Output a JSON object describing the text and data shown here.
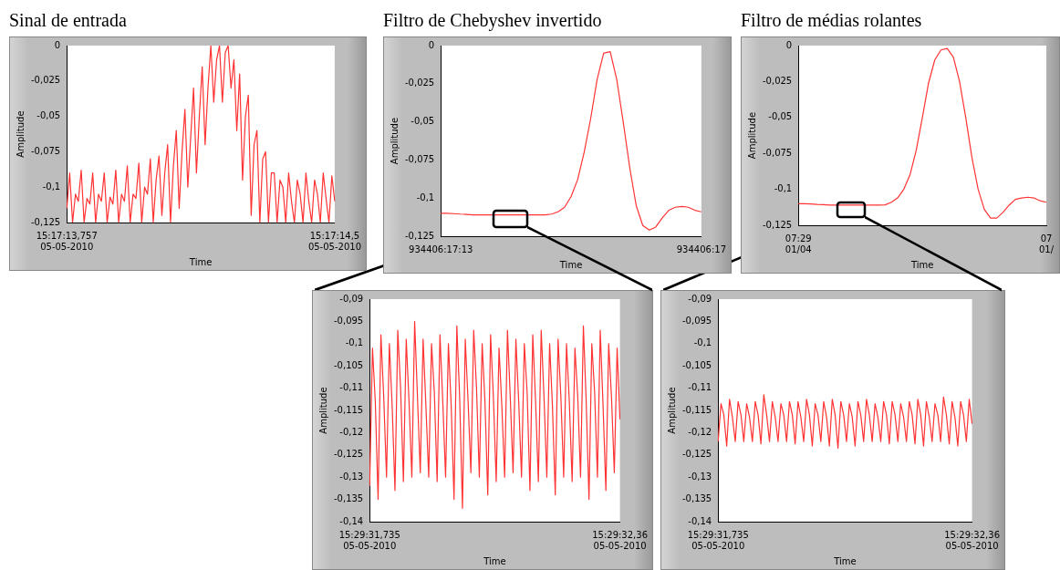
{
  "chart_data": [
    {
      "type": "line",
      "title": "Sinal de entrada",
      "xlabel": "Time",
      "ylabel": "Amplitude",
      "marker": "none",
      "categories": [
        "15:17:13,757\n05-05-2010",
        null,
        null,
        null,
        null,
        null,
        null,
        null,
        null,
        null,
        null,
        null,
        null,
        null,
        null,
        null,
        null,
        null,
        null,
        null,
        null,
        null,
        null,
        null,
        null,
        null,
        null,
        null,
        null,
        null,
        null,
        null,
        null,
        null,
        null,
        null,
        null,
        null,
        null,
        null,
        null,
        null,
        null,
        null,
        null,
        null,
        null,
        null,
        null,
        null,
        null,
        null,
        null,
        null,
        null,
        null,
        null,
        null,
        null,
        null,
        null,
        null,
        null,
        null,
        null,
        null,
        null,
        null,
        null,
        null,
        null,
        null,
        null,
        null,
        null,
        null,
        null,
        null,
        null,
        null,
        null,
        null,
        null,
        null,
        null,
        null,
        null,
        null,
        null,
        null,
        null,
        null,
        null,
        "15:17:14,5\n05-05-2010"
      ],
      "series": [
        {
          "color": "#ff3333",
          "values": [
            -0.115,
            -0.09,
            -0.125,
            -0.105,
            -0.11,
            -0.088,
            -0.125,
            -0.108,
            -0.112,
            -0.09,
            -0.125,
            -0.105,
            -0.11,
            -0.09,
            -0.125,
            -0.107,
            -0.112,
            -0.088,
            -0.125,
            -0.105,
            -0.11,
            -0.085,
            -0.125,
            -0.105,
            -0.108,
            -0.083,
            -0.125,
            -0.1,
            -0.105,
            -0.08,
            -0.125,
            -0.095,
            -0.078,
            -0.12,
            -0.09,
            -0.07,
            -0.125,
            -0.085,
            -0.06,
            -0.115,
            -0.075,
            -0.045,
            -0.1,
            -0.065,
            -0.03,
            -0.09,
            -0.05,
            -0.015,
            -0.07,
            -0.03,
            0,
            -0.04,
            -0.01,
            0,
            -0.04,
            -0.005,
            0,
            -0.03,
            -0.01,
            -0.06,
            -0.02,
            -0.095,
            -0.05,
            -0.035,
            -0.12,
            -0.07,
            -0.06,
            -0.125,
            -0.08,
            -0.075,
            -0.125,
            -0.09,
            -0.09,
            -0.125,
            -0.095,
            -0.1,
            -0.125,
            -0.09,
            -0.11,
            -0.125,
            -0.095,
            -0.105,
            -0.125,
            -0.09,
            -0.11,
            -0.125,
            -0.095,
            -0.105,
            -0.125,
            -0.09,
            -0.108,
            -0.125,
            -0.092,
            -0.11
          ]
        }
      ],
      "ylim": [
        -0.125,
        0
      ],
      "yticks": [
        {
          "value": -0.125,
          "label": "-0,125"
        },
        {
          "value": -0.1,
          "label": "-0,1"
        },
        {
          "value": -0.075,
          "label": "-0,075"
        },
        {
          "value": -0.05,
          "label": "-0,05"
        },
        {
          "value": -0.025,
          "label": "-0,025"
        },
        {
          "value": 0,
          "label": "0"
        }
      ]
    },
    {
      "type": "line",
      "title": "Filtro de Chebyshev invertido",
      "xlabel": "Time",
      "ylabel": "Amplitude",
      "marker": "none",
      "categories": [
        "934406:17:13",
        null,
        null,
        null,
        null,
        null,
        null,
        null,
        null,
        null,
        null,
        null,
        null,
        null,
        null,
        null,
        null,
        null,
        null,
        null,
        null,
        null,
        null,
        null,
        null,
        null,
        null,
        null,
        null,
        null,
        null,
        null,
        null,
        null,
        null,
        null,
        null,
        null,
        null,
        null,
        "934406:17"
      ],
      "series": [
        {
          "color": "#ff3333",
          "values": [
            -0.11,
            -0.11,
            -0.1102,
            -0.1105,
            -0.1107,
            -0.111,
            -0.111,
            -0.111,
            -0.111,
            -0.111,
            -0.111,
            -0.111,
            -0.111,
            -0.111,
            -0.111,
            -0.111,
            -0.111,
            -0.1105,
            -0.109,
            -0.106,
            -0.099,
            -0.088,
            -0.07,
            -0.048,
            -0.022,
            -0.005,
            -0.004,
            -0.022,
            -0.05,
            -0.08,
            -0.105,
            -0.118,
            -0.121,
            -0.119,
            -0.113,
            -0.108,
            -0.106,
            -0.1055,
            -0.106,
            -0.108,
            -0.109
          ]
        }
      ],
      "ylim": [
        -0.125,
        0
      ],
      "yticks": [
        {
          "value": -0.125,
          "label": "-0,125"
        },
        {
          "value": -0.1,
          "label": "-0,1"
        },
        {
          "value": -0.075,
          "label": "-0,075"
        },
        {
          "value": -0.05,
          "label": "-0,05"
        },
        {
          "value": -0.025,
          "label": "-0,025"
        },
        {
          "value": 0,
          "label": "0"
        }
      ]
    },
    {
      "type": "line",
      "title": "Filtro de médias rolantes",
      "xlabel": "Time",
      "ylabel": "Amplitude",
      "marker": "none",
      "categories": [
        "07:29\n01/04",
        null,
        null,
        null,
        null,
        null,
        null,
        null,
        null,
        null,
        null,
        null,
        null,
        null,
        null,
        null,
        null,
        null,
        null,
        null,
        null,
        null,
        null,
        null,
        null,
        null,
        null,
        null,
        null,
        null,
        null,
        null,
        null,
        null,
        null,
        null,
        null,
        null,
        null,
        null,
        "07\n01/"
      ],
      "series": [
        {
          "color": "#ff3333",
          "values": [
            -0.11,
            -0.11,
            -0.1102,
            -0.1105,
            -0.1107,
            -0.111,
            -0.111,
            -0.111,
            -0.111,
            -0.111,
            -0.111,
            -0.111,
            -0.111,
            -0.111,
            -0.1108,
            -0.109,
            -0.106,
            -0.1,
            -0.09,
            -0.073,
            -0.05,
            -0.026,
            -0.01,
            -0.003,
            -0.002,
            -0.008,
            -0.025,
            -0.05,
            -0.078,
            -0.1,
            -0.114,
            -0.12,
            -0.12,
            -0.116,
            -0.111,
            -0.107,
            -0.106,
            -0.1055,
            -0.106,
            -0.108,
            -0.109
          ]
        }
      ],
      "ylim": [
        -0.125,
        0
      ],
      "yticks": [
        {
          "value": -0.125,
          "label": "-0,125"
        },
        {
          "value": -0.1,
          "label": "-0,1"
        },
        {
          "value": -0.075,
          "label": "-0,075"
        },
        {
          "value": -0.05,
          "label": "-0,05"
        },
        {
          "value": -0.025,
          "label": "-0,025"
        },
        {
          "value": 0,
          "label": "0"
        }
      ]
    },
    {
      "type": "line",
      "xlabel": "Time",
      "ylabel": "Amplitude",
      "marker": "none",
      "categories": [
        "15:29:31,735\n05-05-2010",
        null,
        null,
        null,
        null,
        null,
        null,
        null,
        null,
        null,
        null,
        null,
        null,
        null,
        null,
        null,
        null,
        null,
        null,
        null,
        null,
        null,
        null,
        null,
        null,
        null,
        null,
        null,
        null,
        null,
        null,
        null,
        null,
        null,
        null,
        null,
        null,
        null,
        null,
        null,
        null,
        null,
        null,
        null,
        null,
        null,
        null,
        null,
        null,
        null,
        null,
        null,
        null,
        null,
        null,
        null,
        null,
        null,
        null,
        null,
        null,
        null,
        null,
        null,
        null,
        null,
        null,
        null,
        null,
        null,
        null,
        null,
        null,
        null,
        null,
        null,
        null,
        null,
        null,
        null,
        null,
        null,
        null,
        null,
        null,
        null,
        null,
        null,
        null,
        "15:29:32,36\n05-05-2010"
      ],
      "series": [
        {
          "color": "#ff3333",
          "values": [
            -0.132,
            -0.101,
            -0.113,
            -0.135,
            -0.098,
            -0.112,
            -0.13,
            -0.1,
            -0.114,
            -0.133,
            -0.097,
            -0.11,
            -0.131,
            -0.099,
            -0.113,
            -0.13,
            -0.095,
            -0.112,
            -0.129,
            -0.099,
            -0.114,
            -0.13,
            -0.1,
            -0.111,
            -0.131,
            -0.098,
            -0.113,
            -0.13,
            -0.1,
            -0.114,
            -0.135,
            -0.096,
            -0.112,
            -0.137,
            -0.099,
            -0.113,
            -0.129,
            -0.097,
            -0.11,
            -0.13,
            -0.1,
            -0.113,
            -0.134,
            -0.098,
            -0.112,
            -0.131,
            -0.101,
            -0.114,
            -0.13,
            -0.097,
            -0.112,
            -0.129,
            -0.099,
            -0.113,
            -0.13,
            -0.1,
            -0.111,
            -0.133,
            -0.098,
            -0.113,
            -0.131,
            -0.097,
            -0.112,
            -0.13,
            -0.1,
            -0.114,
            -0.134,
            -0.099,
            -0.112,
            -0.13,
            -0.1,
            -0.113,
            -0.131,
            -0.101,
            -0.112,
            -0.13,
            -0.096,
            -0.113,
            -0.135,
            -0.1,
            -0.111,
            -0.13,
            -0.097,
            -0.114,
            -0.133,
            -0.1,
            -0.112,
            -0.129,
            -0.101,
            -0.117
          ]
        }
      ],
      "ylim": [
        -0.14,
        -0.09
      ],
      "yticks": [
        {
          "value": -0.14,
          "label": "-0,14"
        },
        {
          "value": -0.135,
          "label": "-0,135"
        },
        {
          "value": -0.13,
          "label": "-0,13"
        },
        {
          "value": -0.125,
          "label": "-0,125"
        },
        {
          "value": -0.12,
          "label": "-0,12"
        },
        {
          "value": -0.115,
          "label": "-0,115"
        },
        {
          "value": -0.11,
          "label": "-0,11"
        },
        {
          "value": -0.105,
          "label": "-0,105"
        },
        {
          "value": -0.1,
          "label": "-0,1"
        },
        {
          "value": -0.095,
          "label": "-0,095"
        },
        {
          "value": -0.09,
          "label": "-0,09"
        }
      ]
    },
    {
      "type": "line",
      "xlabel": "Time",
      "ylabel": "Amplitude",
      "marker": "none",
      "categories": [
        "15:29:31,735\n05-05-2010",
        null,
        null,
        null,
        null,
        null,
        null,
        null,
        null,
        null,
        null,
        null,
        null,
        null,
        null,
        null,
        null,
        null,
        null,
        null,
        null,
        null,
        null,
        null,
        null,
        null,
        null,
        null,
        null,
        null,
        null,
        null,
        null,
        null,
        null,
        null,
        null,
        null,
        null,
        null,
        null,
        null,
        null,
        null,
        null,
        null,
        null,
        null,
        null,
        null,
        null,
        null,
        null,
        null,
        null,
        null,
        null,
        null,
        null,
        null,
        null,
        null,
        null,
        null,
        null,
        null,
        null,
        null,
        null,
        null,
        null,
        null,
        null,
        null,
        null,
        null,
        null,
        null,
        null,
        null,
        null,
        null,
        null,
        null,
        null,
        null,
        null,
        null,
        null,
        "15:29:32,36\n05-05-2010"
      ],
      "series": [
        {
          "color": "#ff3333",
          "values": [
            -0.122,
            -0.1135,
            -0.116,
            -0.123,
            -0.1125,
            -0.1165,
            -0.122,
            -0.113,
            -0.116,
            -0.122,
            -0.1135,
            -0.1165,
            -0.122,
            -0.113,
            -0.116,
            -0.1225,
            -0.1115,
            -0.116,
            -0.122,
            -0.113,
            -0.1165,
            -0.122,
            -0.1135,
            -0.116,
            -0.122,
            -0.113,
            -0.116,
            -0.1225,
            -0.113,
            -0.1165,
            -0.122,
            -0.1125,
            -0.116,
            -0.123,
            -0.1135,
            -0.116,
            -0.122,
            -0.113,
            -0.1165,
            -0.123,
            -0.1125,
            -0.116,
            -0.1235,
            -0.113,
            -0.116,
            -0.122,
            -0.1135,
            -0.1165,
            -0.123,
            -0.113,
            -0.116,
            -0.122,
            -0.1125,
            -0.116,
            -0.122,
            -0.1135,
            -0.1165,
            -0.122,
            -0.113,
            -0.116,
            -0.1225,
            -0.113,
            -0.116,
            -0.122,
            -0.1135,
            -0.1165,
            -0.122,
            -0.113,
            -0.116,
            -0.1225,
            -0.1125,
            -0.116,
            -0.123,
            -0.113,
            -0.1165,
            -0.122,
            -0.1135,
            -0.116,
            -0.122,
            -0.112,
            -0.116,
            -0.1225,
            -0.113,
            -0.1165,
            -0.123,
            -0.113,
            -0.116,
            -0.122,
            -0.1125,
            -0.118
          ]
        }
      ],
      "ylim": [
        -0.14,
        -0.09
      ],
      "yticks": [
        {
          "value": -0.14,
          "label": "-0,14"
        },
        {
          "value": -0.135,
          "label": "-0,135"
        },
        {
          "value": -0.13,
          "label": "-0,13"
        },
        {
          "value": -0.125,
          "label": "-0,125"
        },
        {
          "value": -0.12,
          "label": "-0,12"
        },
        {
          "value": -0.115,
          "label": "-0,115"
        },
        {
          "value": -0.11,
          "label": "-0,11"
        },
        {
          "value": -0.105,
          "label": "-0,105"
        },
        {
          "value": -0.1,
          "label": "-0,1"
        },
        {
          "value": -0.095,
          "label": "-0,095"
        },
        {
          "value": -0.09,
          "label": "-0,09"
        }
      ]
    }
  ]
}
